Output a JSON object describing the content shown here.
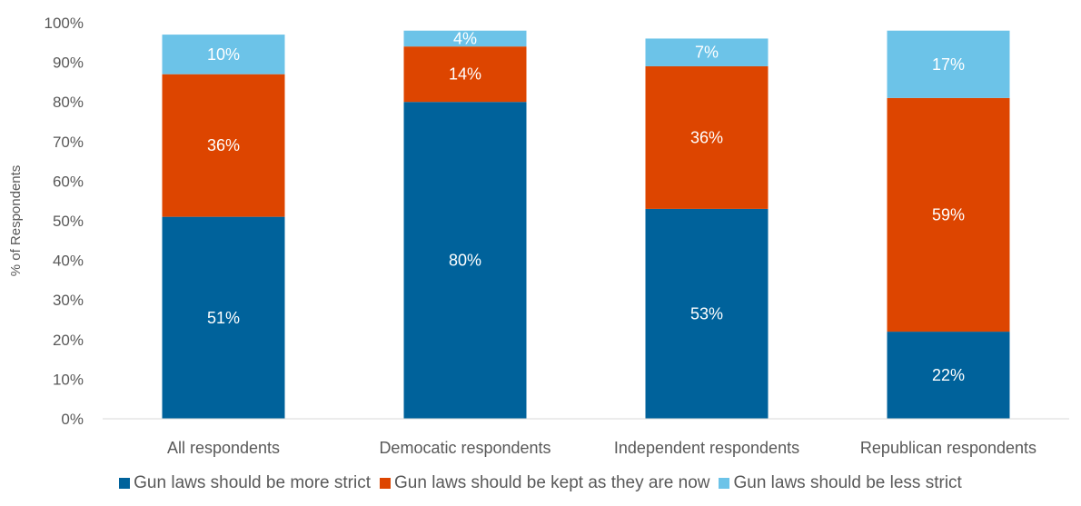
{
  "chart_data": {
    "type": "bar",
    "stacked": true,
    "title": "",
    "xlabel": "",
    "ylabel": "% of Respondents",
    "ylim": [
      0,
      100
    ],
    "yticks": [
      "0%",
      "10%",
      "20%",
      "30%",
      "40%",
      "50%",
      "60%",
      "70%",
      "80%",
      "90%",
      "100%"
    ],
    "categories": [
      "All respondents",
      "Democatic respondents",
      "Independent respondents",
      "Republican respondents"
    ],
    "series": [
      {
        "name": "Gun laws should be more strict",
        "color": "#00629B",
        "values": [
          51,
          80,
          53,
          22
        ],
        "labels": [
          "51%",
          "80%",
          "53%",
          "22%"
        ]
      },
      {
        "name": "Gun laws should be kept as they are now",
        "color": "#DD4500",
        "values": [
          36,
          14,
          36,
          59
        ],
        "labels": [
          "36%",
          "14%",
          "36%",
          "59%"
        ]
      },
      {
        "name": "Gun laws should be less strict",
        "color": "#6CC3E8",
        "values": [
          10,
          4,
          7,
          17
        ],
        "labels": [
          "10%",
          "4%",
          "7%",
          "17%"
        ]
      }
    ],
    "grid": false,
    "legend_position": "bottom"
  }
}
